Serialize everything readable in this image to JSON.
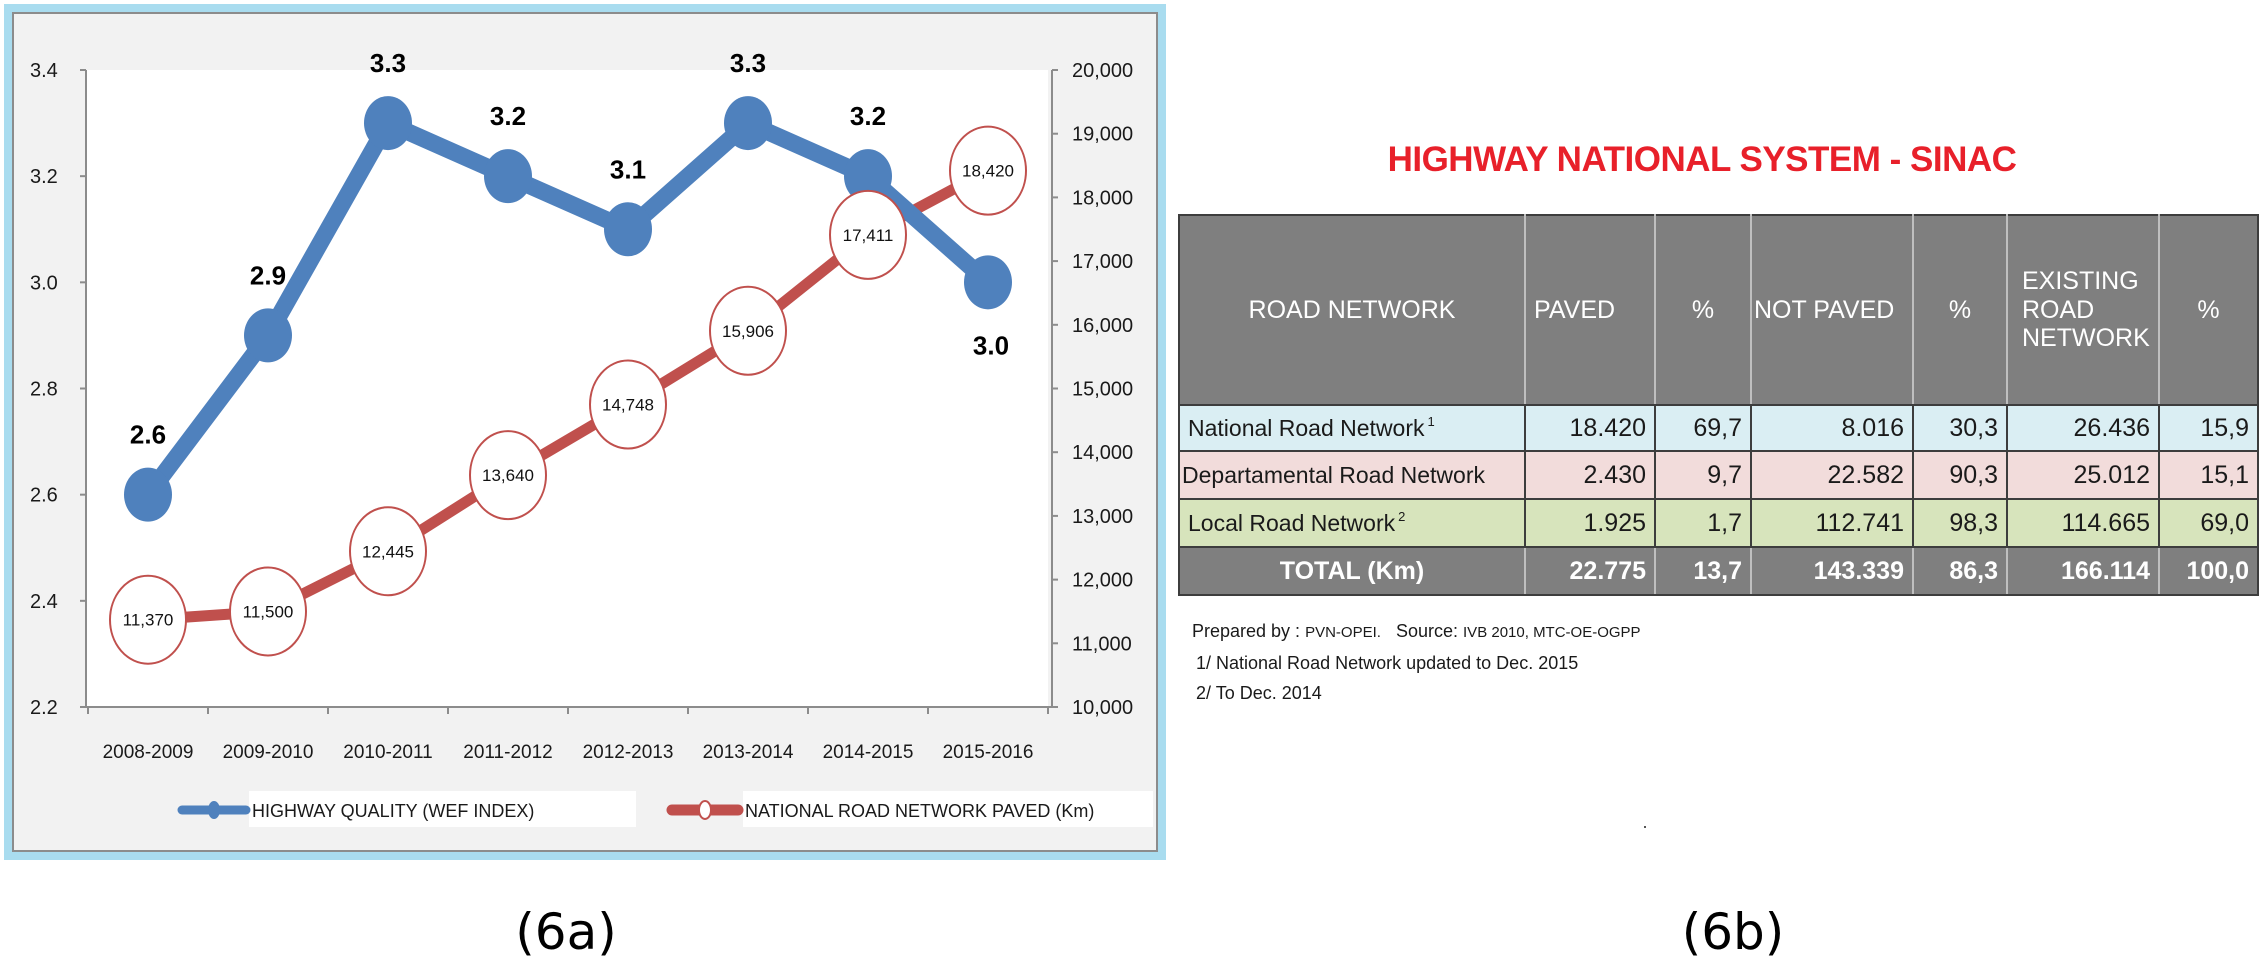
{
  "figure_a": {
    "caption": "(6a)"
  },
  "figure_b": {
    "caption": "(6b)",
    "title": "HIGHWAY NATIONAL SYSTEM - SINAC",
    "table": {
      "headers": [
        "ROAD NETWORK",
        "PAVED",
        "%",
        "NOT PAVED",
        "%",
        "EXISTING ROAD NETWORK",
        "%"
      ],
      "rows": [
        {
          "name": "National Road Network",
          "note": "1",
          "paved": "18.420",
          "paved_pct": "69,7",
          "not_paved": "8.016",
          "not_paved_pct": "30,3",
          "existing": "26.436",
          "existing_pct": "15,9",
          "color": "#daeef3"
        },
        {
          "name": "Departamental Road Network",
          "note": "",
          "paved": "2.430",
          "paved_pct": "9,7",
          "not_paved": "22.582",
          "not_paved_pct": "90,3",
          "existing": "25.012",
          "existing_pct": "15,1",
          "color": "#f2dcdb"
        },
        {
          "name": "Local Road Network",
          "note": "2",
          "paved": "1.925",
          "paved_pct": "1,7",
          "not_paved": "112.741",
          "not_paved_pct": "98,3",
          "existing": "114.665",
          "existing_pct": "69,0",
          "color": "#d7e4bc"
        }
      ],
      "total": {
        "name": "TOTAL (Km)",
        "paved": "22.775",
        "paved_pct": "13,7",
        "not_paved": "143.339",
        "not_paved_pct": "86,3",
        "existing": "166.114",
        "existing_pct": "100,0"
      }
    },
    "footnotes": {
      "prepared_label": "Prepared by :",
      "prepared_by": "PVN-OPEI.",
      "source_label": "Source:",
      "source": "IVB 2010, MTC-OE-OGPP",
      "note1": "1/ National Road Network updated to Dec. 2015",
      "note2": "2/ To Dec. 2014"
    }
  },
  "chart_data": {
    "type": "line",
    "title": "",
    "categories": [
      "2008-2009",
      "2009-2010",
      "2010-2011",
      "2011-2012",
      "2012-2013",
      "2013-2014",
      "2014-2015",
      "2015-2016"
    ],
    "series": [
      {
        "name": "HIGHWAY QUALITY (WEF INDEX)",
        "axis": "left",
        "color": "#4f81bd",
        "values": [
          2.6,
          2.9,
          3.3,
          3.2,
          3.1,
          3.3,
          3.2,
          3.0
        ],
        "labels": [
          "2.6",
          "2.9",
          "3.3",
          "3.2",
          "3.1",
          "3.3",
          "3.2",
          "3.0"
        ]
      },
      {
        "name": "NATIONAL ROAD NETWORK PAVED (Km)",
        "axis": "right",
        "color": "#c0504d",
        "values": [
          11370,
          11500,
          12445,
          13640,
          14748,
          15906,
          17411,
          18420
        ],
        "labels": [
          "11,370",
          "11,500",
          "12,445",
          "13,640",
          "14,748",
          "15,906",
          "17,411",
          "18,420"
        ]
      }
    ],
    "y_left": {
      "min": 2.2,
      "max": 3.4,
      "ticks": [
        "2.2",
        "2.4",
        "2.6",
        "2.8",
        "3.0",
        "3.2",
        "3.4"
      ]
    },
    "y_right": {
      "min": 10000,
      "max": 20000,
      "ticks": [
        "10,000",
        "11,000",
        "12,000",
        "13,000",
        "14,000",
        "15,000",
        "16,000",
        "17,000",
        "18,000",
        "19,000",
        "20,000"
      ]
    },
    "xlabel": "",
    "ylabel": "",
    "grid": false,
    "legend": "bottom"
  }
}
